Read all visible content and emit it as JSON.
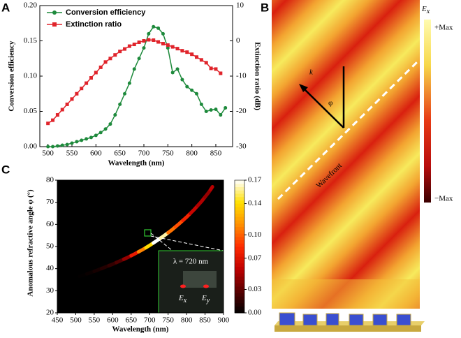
{
  "chart_data": [
    {
      "type": "line",
      "panel_label": "A",
      "x_label": "Wavelength (nm)",
      "y_label": "Conversion efficiency",
      "y2_label": "Extinction ratio (dB)",
      "xlim": [
        483,
        885
      ],
      "xticks": [
        500,
        550,
        600,
        650,
        700,
        750,
        800,
        850
      ],
      "ylim": [
        0,
        0.2
      ],
      "yticks": [
        {
          "value": 0,
          "label": "0.00"
        },
        0.05,
        {
          "value": 0.1,
          "label": "0.10"
        },
        0.15,
        {
          "value": 0.2,
          "label": "0.20"
        }
      ],
      "y2lim": [
        -30,
        10
      ],
      "y2ticks": [
        -30,
        -20,
        -10,
        0,
        10
      ],
      "legend": "upper-left",
      "series": [
        {
          "name": "Conversion efficiency",
          "color": "#1e8a3c",
          "marker": "circle",
          "x": [
            500,
            510,
            520,
            530,
            540,
            550,
            560,
            570,
            580,
            590,
            600,
            610,
            620,
            630,
            640,
            650,
            660,
            670,
            680,
            690,
            700,
            710,
            720,
            730,
            740,
            750,
            760,
            770,
            780,
            790,
            800,
            810,
            820,
            830,
            840,
            850,
            860,
            870
          ],
          "values": [
            0,
            0,
            0.001,
            0.002,
            0.003,
            0.005,
            0.007,
            0.009,
            0.011,
            0.013,
            0.016,
            0.02,
            0.025,
            0.032,
            0.045,
            0.06,
            0.075,
            0.09,
            0.11,
            0.125,
            0.14,
            0.16,
            0.17,
            0.168,
            0.16,
            0.14,
            0.105,
            0.11,
            0.095,
            0.085,
            0.08,
            0.075,
            0.06,
            0.05,
            0.052,
            0.053,
            0.045,
            0.055
          ]
        },
        {
          "name": "Extinction ratio",
          "color": "#e0242b",
          "marker": "square",
          "axis": "y2",
          "x": [
            500,
            510,
            520,
            530,
            540,
            550,
            560,
            570,
            580,
            590,
            600,
            610,
            620,
            630,
            640,
            650,
            660,
            670,
            680,
            690,
            700,
            710,
            720,
            730,
            740,
            750,
            760,
            770,
            780,
            790,
            800,
            810,
            820,
            830,
            840,
            850,
            860
          ],
          "values": [
            -23.4,
            -22.5,
            -21,
            -19.5,
            -18,
            -16.5,
            -15,
            -13.5,
            -12,
            -10.5,
            -9,
            -7.5,
            -6,
            -5,
            -4,
            -3,
            -2.3,
            -1.5,
            -1,
            -0.4,
            0,
            0.3,
            0.2,
            -0.3,
            -0.8,
            -1.2,
            -1.7,
            -2.2,
            -2.8,
            -3.2,
            -3.8,
            -4.6,
            -5.4,
            -6.2,
            -7.8,
            -8,
            -9.2
          ]
        }
      ]
    },
    {
      "type": "colored_line",
      "panel_label": "C",
      "x_label": "Wavelength (nm)",
      "y_label": "Anomalous refractive angle φ (°)",
      "xlim": [
        450,
        900
      ],
      "xticks": [
        450,
        500,
        550,
        600,
        650,
        700,
        750,
        800,
        850,
        900
      ],
      "ylim": [
        20,
        80
      ],
      "yticks": [
        20,
        30,
        40,
        50,
        60,
        70,
        80
      ],
      "clim": [
        0,
        0.17
      ],
      "cticks": [
        {
          "value": 0,
          "label": "0.00"
        },
        0.03,
        0.07,
        {
          "value": 0.1,
          "label": "0.10"
        },
        0.14,
        0.17
      ],
      "colormap": [
        "#000000",
        "#5a0000",
        "#c00000",
        "#ff2a00",
        "#ff9000",
        "#ffe000",
        "#ffffff"
      ],
      "inset_title": "λ = 720 nm",
      "inset_labels": [
        {
          "main": "E",
          "sub": "x"
        },
        {
          "main": "E",
          "sub": "y"
        }
      ],
      "series": [
        {
          "x": [
            500,
            520,
            540,
            560,
            580,
            600,
            620,
            640,
            660,
            680,
            700,
            720,
            740,
            760,
            780,
            800,
            820,
            840,
            860,
            870
          ],
          "values": [
            36,
            37,
            38.2,
            39.4,
            40.7,
            42,
            43.5,
            45,
            46.7,
            48.5,
            50.5,
            52.7,
            55,
            57.5,
            60.3,
            63.3,
            66.6,
            70.3,
            74.5,
            77
          ],
          "color_values": [
            0,
            0.001,
            0.003,
            0.007,
            0.011,
            0.016,
            0.025,
            0.045,
            0.075,
            0.11,
            0.14,
            0.17,
            0.16,
            0.105,
            0.095,
            0.08,
            0.06,
            0.052,
            0.045,
            0.055
          ]
        }
      ]
    }
  ],
  "panel_b": {
    "panel_label": "B",
    "colorbar_title": "E",
    "colorbar_title_sub": "x",
    "max_label": "+Max",
    "min_label": "−Max",
    "k": "k",
    "phi": "φ",
    "wavefront": "Wavefront"
  }
}
